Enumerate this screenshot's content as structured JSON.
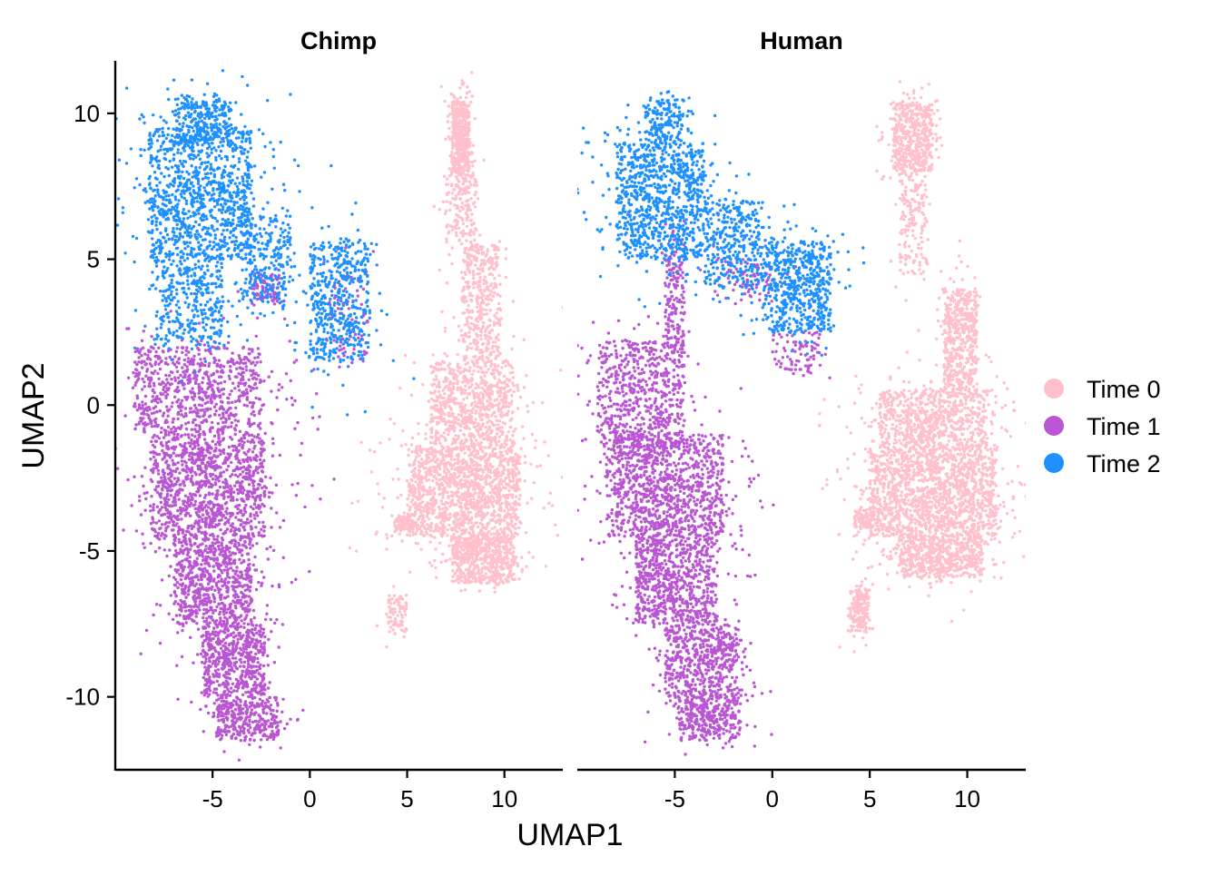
{
  "chart_data": {
    "type": "scatter",
    "facets": [
      "Chimp",
      "Human"
    ],
    "xlabel": "UMAP1",
    "ylabel": "UMAP2",
    "xlim": [
      -10,
      13
    ],
    "ylim": [
      -12.5,
      11.8
    ],
    "x_ticks": [
      -5,
      0,
      5,
      10
    ],
    "y_ticks": [
      -10,
      -5,
      0,
      5,
      10
    ],
    "x_tick_labels": [
      "-5",
      "0",
      "5",
      "10"
    ],
    "y_tick_labels": [
      "-10",
      "-5",
      "0",
      "5",
      "10"
    ],
    "legend_position": "right",
    "series": [
      {
        "name": "Time 0",
        "color": "#FFC0CB",
        "regions": {
          "Chimp": [
            {
              "x": [
                7.3,
                8.2
              ],
              "y": [
                8.0,
                10.4
              ],
              "weight": 6
            },
            {
              "x": [
                7.0,
                8.6
              ],
              "y": [
                5.5,
                8.0
              ],
              "weight": 2
            },
            {
              "x": [
                7.8,
                9.8
              ],
              "y": [
                1.5,
                5.5
              ],
              "weight": 5
            },
            {
              "x": [
                6.2,
                10.5
              ],
              "y": [
                -1.5,
                1.5
              ],
              "weight": 9
            },
            {
              "x": [
                5.0,
                10.8
              ],
              "y": [
                -4.5,
                -1.5
              ],
              "weight": 16
            },
            {
              "x": [
                7.3,
                10.5
              ],
              "y": [
                -6.1,
                -4.5
              ],
              "weight": 7
            },
            {
              "x": [
                4.3,
                5.3
              ],
              "y": [
                -4.3,
                -3.8
              ],
              "weight": 1
            },
            {
              "x": [
                4.0,
                5.0
              ],
              "y": [
                -7.8,
                -6.5
              ],
              "weight": 1
            }
          ],
          "Human": [
            {
              "x": [
                6.2,
                8.2
              ],
              "y": [
                8.0,
                10.4
              ],
              "weight": 6
            },
            {
              "x": [
                6.5,
                8.0
              ],
              "y": [
                4.5,
                8.0
              ],
              "weight": 2
            },
            {
              "x": [
                8.8,
                10.5
              ],
              "y": [
                0.5,
                4.0
              ],
              "weight": 6
            },
            {
              "x": [
                5.5,
                11.0
              ],
              "y": [
                -1.5,
                0.5
              ],
              "weight": 9
            },
            {
              "x": [
                5.0,
                11.5
              ],
              "y": [
                -4.5,
                -1.5
              ],
              "weight": 18
            },
            {
              "x": [
                6.5,
                10.8
              ],
              "y": [
                -5.9,
                -4.5
              ],
              "weight": 7
            },
            {
              "x": [
                4.2,
                5.2
              ],
              "y": [
                -4.2,
                -3.6
              ],
              "weight": 1
            },
            {
              "x": [
                4.0,
                5.0
              ],
              "y": [
                -7.8,
                -6.3
              ],
              "weight": 2
            }
          ]
        }
      },
      {
        "name": "Time 1",
        "color": "#BA55D3",
        "regions": {
          "Chimp": [
            {
              "x": [
                -9.0,
                -2.5
              ],
              "y": [
                -1.0,
                2.0
              ],
              "weight": 9
            },
            {
              "x": [
                -8.2,
                -2.3
              ],
              "y": [
                -4.5,
                -1.0
              ],
              "weight": 14
            },
            {
              "x": [
                -7.0,
                -3.0
              ],
              "y": [
                -7.5,
                -4.5
              ],
              "weight": 9
            },
            {
              "x": [
                -5.5,
                -2.3
              ],
              "y": [
                -10.0,
                -7.5
              ],
              "weight": 7
            },
            {
              "x": [
                -4.8,
                -1.6
              ],
              "y": [
                -11.5,
                -10.0
              ],
              "weight": 4
            },
            {
              "x": [
                -3.0,
                -1.5
              ],
              "y": [
                3.5,
                4.5
              ],
              "weight": 1
            },
            {
              "x": [
                1.0,
                3.0
              ],
              "y": [
                1.5,
                4.8
              ],
              "weight": 1
            }
          ],
          "Human": [
            {
              "x": [
                -9.0,
                -4.5
              ],
              "y": [
                -1.5,
                2.2
              ],
              "weight": 8
            },
            {
              "x": [
                -8.5,
                -2.5
              ],
              "y": [
                -4.5,
                -1.0
              ],
              "weight": 13
            },
            {
              "x": [
                -7.0,
                -2.8
              ],
              "y": [
                -7.5,
                -4.5
              ],
              "weight": 9
            },
            {
              "x": [
                -5.5,
                -1.8
              ],
              "y": [
                -10.0,
                -7.5
              ],
              "weight": 7
            },
            {
              "x": [
                -4.8,
                -1.6
              ],
              "y": [
                -11.5,
                -10.0
              ],
              "weight": 4
            },
            {
              "x": [
                -5.5,
                -4.5
              ],
              "y": [
                2.0,
                5.5
              ],
              "weight": 2
            },
            {
              "x": [
                0.0,
                2.5
              ],
              "y": [
                1.0,
                2.5
              ],
              "weight": 1
            },
            {
              "x": [
                -3.0,
                0.0
              ],
              "y": [
                3.5,
                5.0
              ],
              "weight": 1
            }
          ]
        }
      },
      {
        "name": "Time 2",
        "color": "#1E90FF",
        "regions": {
          "Chimp": [
            {
              "x": [
                -8.3,
                -3.0
              ],
              "y": [
                5.0,
                9.5
              ],
              "weight": 13
            },
            {
              "x": [
                -7.0,
                -4.0
              ],
              "y": [
                9.0,
                10.5
              ],
              "weight": 3
            },
            {
              "x": [
                -8.0,
                -4.5
              ],
              "y": [
                2.0,
                5.0
              ],
              "weight": 4
            },
            {
              "x": [
                -3.5,
                -1.0
              ],
              "y": [
                3.5,
                6.5
              ],
              "weight": 3
            },
            {
              "x": [
                0.0,
                3.0
              ],
              "y": [
                1.5,
                5.7
              ],
              "weight": 6
            }
          ],
          "Human": [
            {
              "x": [
                -8.0,
                -3.5
              ],
              "y": [
                5.0,
                9.0
              ],
              "weight": 11
            },
            {
              "x": [
                -6.5,
                -4.5
              ],
              "y": [
                9.0,
                10.5
              ],
              "weight": 2
            },
            {
              "x": [
                -3.5,
                -0.5
              ],
              "y": [
                4.0,
                7.0
              ],
              "weight": 4
            },
            {
              "x": [
                -0.5,
                3.0
              ],
              "y": [
                2.5,
                5.6
              ],
              "weight": 7
            }
          ]
        }
      }
    ]
  }
}
